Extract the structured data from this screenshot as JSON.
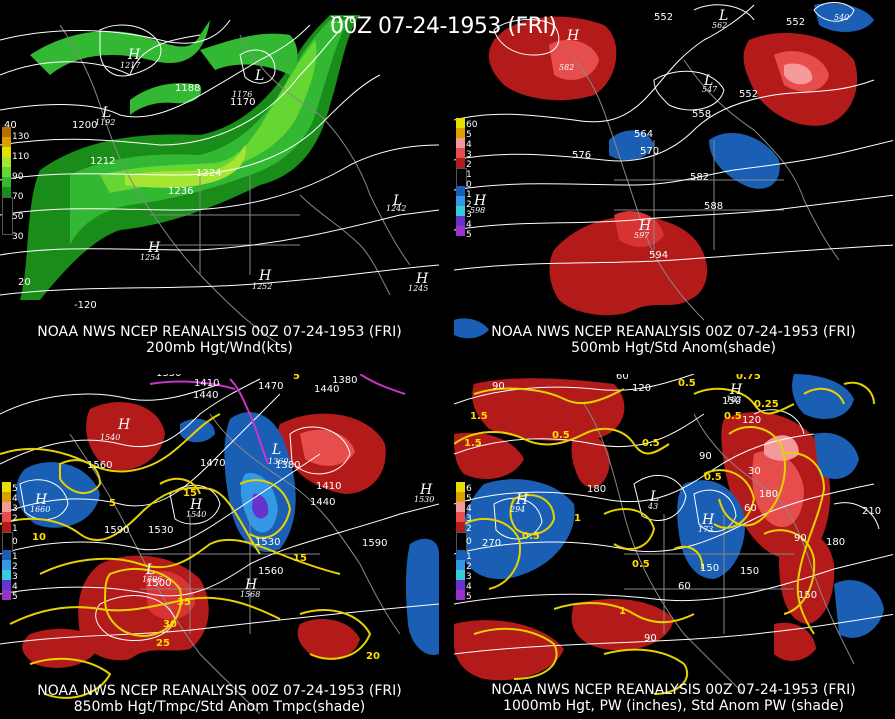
{
  "header": {
    "datetime": "00Z 07-24-1953 (FRI)"
  },
  "panels": [
    {
      "caption_line1": "NOAA NWS NCEP REANALYSIS 00Z 07-24-1953 (FRI)",
      "caption_line2": "200mb Hgt/Wnd(kts)",
      "legend": [
        "130",
        "110",
        "90",
        "70",
        "50",
        "30"
      ],
      "contour_labels": [
        "1188",
        "1200",
        "1212",
        "1224",
        "1236",
        "1176",
        "1170"
      ],
      "centers": [
        {
          "type": "H",
          "value": "1217"
        },
        {
          "type": "L",
          "value": "1192"
        },
        {
          "type": "L",
          "value": "1176"
        },
        {
          "type": "L",
          "value": "1242"
        },
        {
          "type": "H",
          "value": "1254"
        },
        {
          "type": "H",
          "value": "1252"
        },
        {
          "type": "H",
          "value": "1245"
        }
      ],
      "axis_labels": [
        "40",
        "-120",
        "20"
      ]
    },
    {
      "caption_line1": "NOAA NWS NCEP REANALYSIS 00Z 07-24-1953 (FRI)",
      "caption_line2": "500mb Hgt/Std Anom(shade)",
      "legend": [
        "60",
        "5",
        "4",
        "3",
        "2",
        "1",
        "0",
        "1",
        "2",
        "3",
        "4",
        "5"
      ],
      "contour_labels": [
        "552",
        "552",
        "576",
        "564",
        "570",
        "558",
        "582",
        "588",
        "594",
        "552"
      ],
      "centers": [
        {
          "type": "H",
          "value": "582"
        },
        {
          "type": "L",
          "value": "547"
        },
        {
          "type": "L",
          "value": "562"
        },
        {
          "type": "L",
          "value": "540"
        },
        {
          "type": "H",
          "value": "597"
        },
        {
          "type": "H",
          "value": "598"
        }
      ]
    },
    {
      "caption_line1": "NOAA NWS NCEP REANALYSIS 00Z 07-24-1953 (FRI)",
      "caption_line2": "850mb Hgt/Tmpc/Std Anom Tmpc(shade)",
      "legend": [
        "5",
        "4",
        "3",
        "2",
        "1",
        "0",
        "1",
        "2",
        "3",
        "4",
        "5"
      ],
      "contour_labels": [
        "1350",
        "1410",
        "1440",
        "1470",
        "1380",
        "1440",
        "1560",
        "1590",
        "1530",
        "1470",
        "1410",
        "1440",
        "1590",
        "1500",
        "1560",
        "1530",
        "1380"
      ],
      "temp_labels": [
        "5",
        "10",
        "15",
        "20",
        "25",
        "30",
        "35",
        "15",
        "5"
      ],
      "centers": [
        {
          "type": "H",
          "value": "1540"
        },
        {
          "type": "H",
          "value": "1660"
        },
        {
          "type": "L",
          "value": "1360"
        },
        {
          "type": "H",
          "value": "1540"
        },
        {
          "type": "L",
          "value": "1506"
        },
        {
          "type": "H",
          "value": "1568"
        },
        {
          "type": "H",
          "value": "1530"
        }
      ]
    },
    {
      "caption_line1": "NOAA NWS NCEP REANALYSIS 00Z 07-24-1953 (FRI)",
      "caption_line2": "1000mb Hgt, PW (inches), Std Anom PW (shade)",
      "legend": [
        "6",
        "5",
        "4",
        "3",
        "2",
        "0",
        "1",
        "2",
        "3",
        "4",
        "5"
      ],
      "contour_labels": [
        "90",
        "60",
        "120",
        "150",
        "180",
        "150",
        "120",
        "90",
        "30",
        "60",
        "90",
        "180",
        "210",
        "150",
        "180",
        "270",
        "150",
        "90",
        "60"
      ],
      "pw_labels": [
        "0.5",
        "0.75",
        "0.5",
        "0.25",
        "1.5",
        "0.5",
        "0.5",
        "0.5",
        "0.5",
        "1.5",
        "1",
        "1",
        "0.5"
      ],
      "centers": [
        {
          "type": "H",
          "value": "294"
        },
        {
          "type": "L",
          "value": "43"
        },
        {
          "type": "H",
          "value": "173"
        },
        {
          "type": "H",
          "value": "182"
        }
      ]
    }
  ]
}
